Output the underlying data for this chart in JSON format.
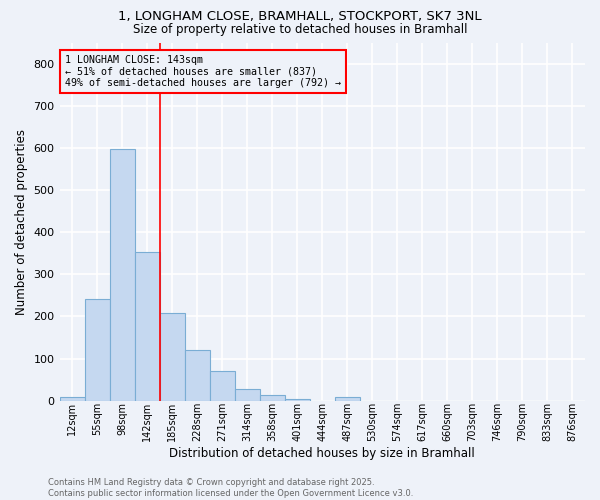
{
  "title_line1": "1, LONGHAM CLOSE, BRAMHALL, STOCKPORT, SK7 3NL",
  "title_line2": "Size of property relative to detached houses in Bramhall",
  "xlabel": "Distribution of detached houses by size in Bramhall",
  "ylabel": "Number of detached properties",
  "bar_labels": [
    "12sqm",
    "55sqm",
    "98sqm",
    "142sqm",
    "185sqm",
    "228sqm",
    "271sqm",
    "314sqm",
    "358sqm",
    "401sqm",
    "444sqm",
    "487sqm",
    "530sqm",
    "574sqm",
    "617sqm",
    "660sqm",
    "703sqm",
    "746sqm",
    "790sqm",
    "833sqm",
    "876sqm"
  ],
  "bar_values": [
    8,
    242,
    597,
    352,
    208,
    120,
    70,
    28,
    13,
    5,
    0,
    8,
    0,
    0,
    0,
    0,
    0,
    0,
    0,
    0,
    0
  ],
  "bar_color": "#c5d8f0",
  "bar_edge_color": "#7aadd4",
  "vline_color": "red",
  "annotation_text": "1 LONGHAM CLOSE: 143sqm\n← 51% of detached houses are smaller (837)\n49% of semi-detached houses are larger (792) →",
  "ylim": [
    0,
    850
  ],
  "yticks": [
    0,
    100,
    200,
    300,
    400,
    500,
    600,
    700,
    800
  ],
  "background_color": "#eef2f9",
  "grid_color": "#ffffff",
  "footer_line1": "Contains HM Land Registry data © Crown copyright and database right 2025.",
  "footer_line2": "Contains public sector information licensed under the Open Government Licence v3.0."
}
